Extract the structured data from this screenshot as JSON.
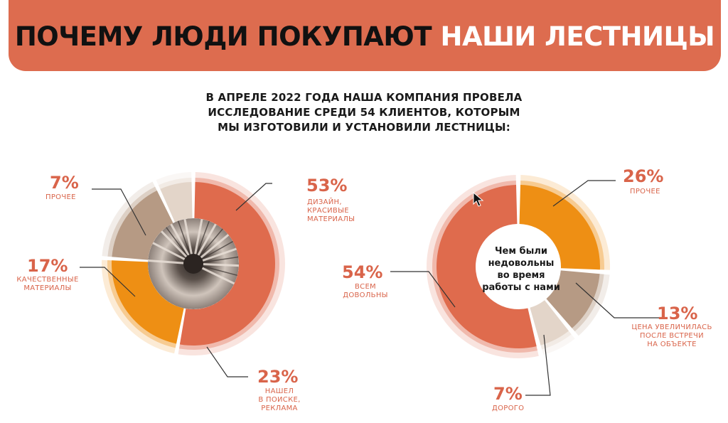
{
  "header": {
    "title_part1": "ПОЧЕМУ ЛЮДИ ПОКУПАЮТ",
    "title_part2": "НАШИ ЛЕСТНИЦЫ"
  },
  "intro": {
    "line1": "В АПРЕЛЕ 2022 ГОДА НАША КОМПАНИЯ ПРОВЕЛА",
    "line2": "ИССЛЕДОВАНИЕ СРЕДИ 54 КЛИЕНТОВ, КОТОРЫМ",
    "line3": "МЫ ИЗГОТОВИЛИ И УСТАНОВИЛИ ЛЕСТНИЦЫ:"
  },
  "chart_data": [
    {
      "type": "pie",
      "slices": [
        {
          "label_pct": "53%",
          "value": 53,
          "caption": [
            "ДИЗАЙН,",
            "КРАСИВЫЕ",
            "МАТЕРИАЛЫ"
          ],
          "color": "#df6b4d"
        },
        {
          "label_pct": "23%",
          "value": 23,
          "caption": [
            "НАШЕЛ",
            "В ПОИСКЕ,",
            "РЕКЛАМА"
          ],
          "color": "#ee8f14"
        },
        {
          "label_pct": "17%",
          "value": 17,
          "caption": [
            "КАЧЕСТВЕННЫЕ",
            "МАТЕРИАЛЫ"
          ],
          "color": "#b69a84"
        },
        {
          "label_pct": "7%",
          "value": 7,
          "caption": [
            "ПРОЧЕЕ"
          ],
          "color": "#e3d5c9"
        }
      ]
    },
    {
      "type": "pie",
      "center_label": [
        "Чем были",
        "недовольны",
        "во время",
        "работы с нами"
      ],
      "slices": [
        {
          "label_pct": "26%",
          "value": 26,
          "caption": [
            "ПРОЧЕЕ"
          ],
          "color": "#ee8f14"
        },
        {
          "label_pct": "13%",
          "value": 13,
          "caption": [
            "ЦЕНА УВЕЛИЧИЛАСЬ",
            "ПОСЛЕ ВСТРЕЧИ",
            "НА ОБЪЕКТЕ"
          ],
          "color": "#b69a84"
        },
        {
          "label_pct": "7%",
          "value": 7,
          "caption": [
            "ДОРОГО"
          ],
          "color": "#e3d5c9"
        },
        {
          "label_pct": "54%",
          "value": 54,
          "caption": [
            "ВСЕМ",
            "ДОВОЛЬНЫ"
          ],
          "color": "#df6b4d"
        }
      ]
    }
  ]
}
